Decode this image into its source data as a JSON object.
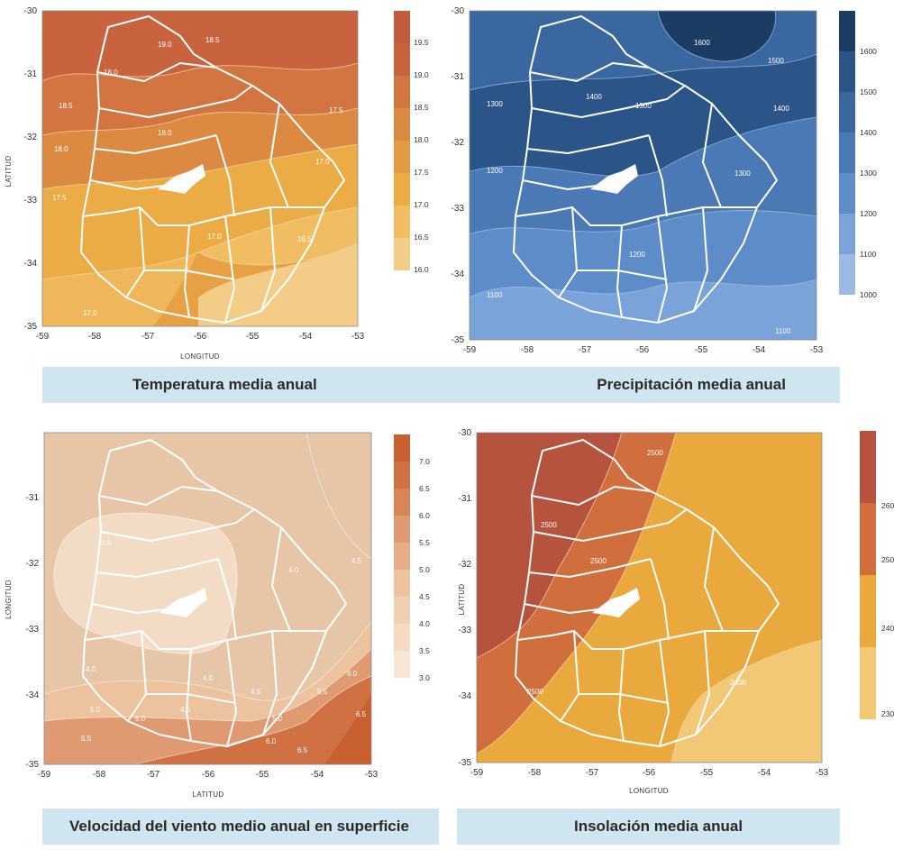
{
  "maps": [
    {
      "id": "temp",
      "caption": "Temperatura media anual",
      "y_axis_label": "LATITUD",
      "x_axis_label": "LONGITUD",
      "x_ticks": [
        "-59",
        "-58",
        "-57",
        "-56",
        "-55",
        "-54",
        "-53"
      ],
      "y_ticks": [
        "-30",
        "-31",
        "-32",
        "-33",
        "-34",
        "-35"
      ],
      "legend_ticks": [
        "19.5",
        "19.0",
        "18.5",
        "18.0",
        "17.5",
        "17.0",
        "16.5",
        "16.0"
      ],
      "legend_colors": [
        "#c45a3c",
        "#c9633e",
        "#d27540",
        "#dc8a42",
        "#e39a43",
        "#ebab45",
        "#f0bd62",
        "#f3cd88"
      ],
      "contour_labels": [
        "19.0",
        "18.5",
        "18.0",
        "18.5",
        "18.0",
        "17.5",
        "18.0",
        "17.5",
        "17.0",
        "17.0",
        "16.5",
        "17.0"
      ],
      "background": "#e8a044"
    },
    {
      "id": "precip",
      "caption": "Precipitación media anual",
      "y_axis_label": "",
      "x_axis_label": "",
      "x_ticks": [
        "-59",
        "-58",
        "-57",
        "-56",
        "-55",
        "-54",
        "-53"
      ],
      "y_ticks": [
        "-30",
        "-31",
        "-32",
        "-33",
        "-34",
        "-35"
      ],
      "legend_ticks": [
        "1600",
        "1500",
        "1400",
        "1300",
        "1200",
        "1100",
        "1000"
      ],
      "legend_colors": [
        "#1b3d63",
        "#2b5589",
        "#3a67a0",
        "#4a79b5",
        "#5e8cc8",
        "#7aa3d9",
        "#9bbbe6"
      ],
      "contour_labels": [
        "1600",
        "1500",
        "1400",
        "1500",
        "1400",
        "1300",
        "1300",
        "1200",
        "1200",
        "1100",
        "1100"
      ],
      "background": "#4d7fbf"
    },
    {
      "id": "wind",
      "caption": "Velocidad del viento medio anual en superficie",
      "y_axis_label": "LONGITUD",
      "x_axis_label": "LATITUD",
      "x_ticks": [
        "-59",
        "-58",
        "-57",
        "-56",
        "-55",
        "-54",
        "-53"
      ],
      "y_ticks": [
        "-31",
        "-32",
        "-33",
        "-34",
        "-35"
      ],
      "legend_ticks": [
        "7.0",
        "6.5",
        "6.0",
        "5.5",
        "5.0",
        "4.5",
        "4.0",
        "3.5",
        "3.0"
      ],
      "legend_colors": [
        "#c8602f",
        "#d07143",
        "#d98558",
        "#e09a72",
        "#e6ad88",
        "#ecc29f",
        "#f0d0b0",
        "#f4dcc3",
        "#f7e7d6"
      ],
      "contour_labels": [
        "3.5",
        "4.0",
        "4.5",
        "4.0",
        "5.0",
        "4.0",
        "4.5",
        "5.0",
        "5.5",
        "6.0",
        "6.5",
        "6.5",
        "5.5",
        "4.5",
        "5.0",
        "6.0"
      ],
      "background": "#e6c6a7"
    },
    {
      "id": "insol",
      "caption": "Insolación media anual",
      "y_axis_label": "LATITUD",
      "x_axis_label": "LONGITUD",
      "x_ticks": [
        "-59",
        "-58",
        "-57",
        "-56",
        "-55",
        "-54",
        "-53"
      ],
      "y_ticks": [
        "-30",
        "-31",
        "-32",
        "-33",
        "-34",
        "-35"
      ],
      "legend_ticks": [
        "260",
        "250",
        "240",
        "230"
      ],
      "legend_colors": [
        "#b5533e",
        "#d06e3e",
        "#eaa93c",
        "#f2c877"
      ],
      "contour_labels": [
        "2500",
        "2500",
        "2500",
        "2500",
        "2400"
      ],
      "background": "#eaa93c"
    }
  ]
}
